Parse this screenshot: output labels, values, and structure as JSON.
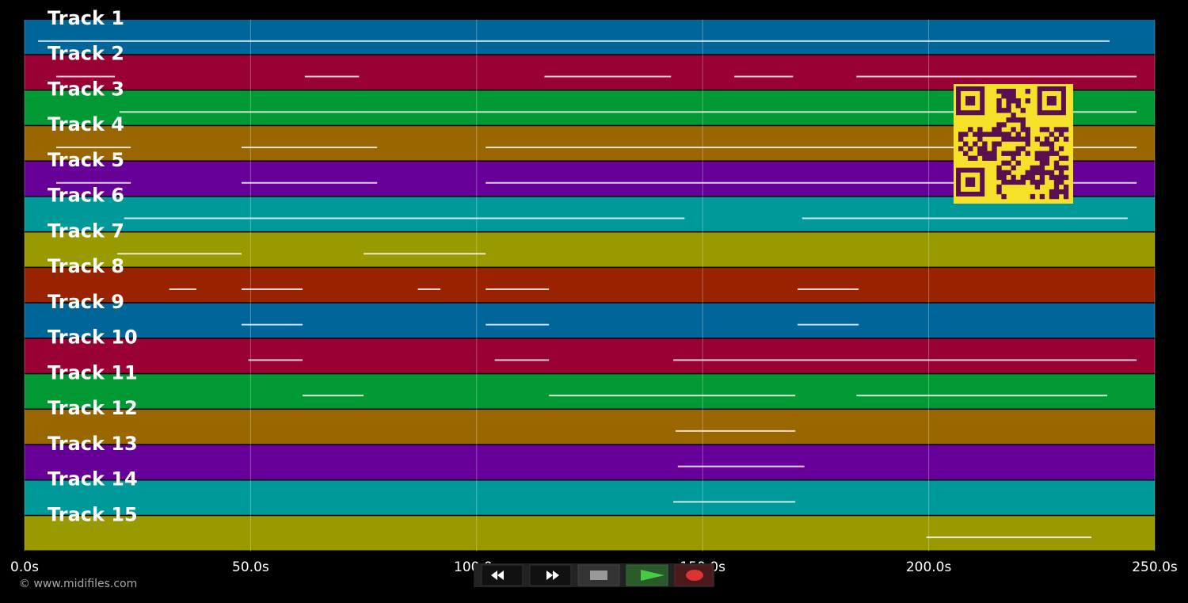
{
  "timeline": {
    "xlim": [
      0,
      250
    ],
    "xticks": [
      {
        "value": 0,
        "label": "0.0s"
      },
      {
        "value": 50,
        "label": "50.0s"
      },
      {
        "value": 100,
        "label": "100.0s"
      },
      {
        "value": 150,
        "label": "150.0s"
      },
      {
        "value": 200,
        "label": "200.0s"
      },
      {
        "value": 250,
        "label": "250.0s"
      }
    ],
    "tracks": [
      {
        "label": "Track 1",
        "color": "#006699",
        "notes": [
          [
            3,
            240
          ]
        ]
      },
      {
        "label": "Track 2",
        "color": "#990033",
        "notes": [
          [
            7,
            20
          ],
          [
            62,
            74
          ],
          [
            115,
            143
          ],
          [
            157,
            170
          ],
          [
            184,
            246
          ]
        ]
      },
      {
        "label": "Track 3",
        "color": "#009933",
        "notes": [
          [
            21,
            246
          ]
        ]
      },
      {
        "label": "Track 4",
        "color": "#996600",
        "notes": [
          [
            7,
            23.5
          ],
          [
            48,
            78
          ],
          [
            102,
            246
          ]
        ]
      },
      {
        "label": "Track 5",
        "color": "#660099",
        "notes": [
          [
            7,
            23.5
          ],
          [
            48,
            78
          ],
          [
            102,
            246
          ]
        ]
      },
      {
        "label": "Track 6",
        "color": "#009999",
        "notes": [
          [
            22,
            146
          ],
          [
            172,
            244
          ]
        ]
      },
      {
        "label": "Track 7",
        "color": "#999900",
        "notes": [
          [
            20.5,
            48
          ],
          [
            75,
            102
          ]
        ]
      },
      {
        "label": "Track 8",
        "color": "#992200",
        "notes": [
          [
            32,
            38
          ],
          [
            48,
            61.5
          ],
          [
            87,
            92
          ],
          [
            102,
            116
          ],
          [
            171,
            184.5
          ]
        ]
      },
      {
        "label": "Track 9",
        "color": "#006699",
        "notes": [
          [
            48,
            61.5
          ],
          [
            102,
            116
          ],
          [
            171,
            184.5
          ]
        ]
      },
      {
        "label": "Track 10",
        "color": "#990033",
        "notes": [
          [
            49.5,
            61.5
          ],
          [
            104,
            116
          ],
          [
            143.5,
            246
          ]
        ]
      },
      {
        "label": "Track 11",
        "color": "#009933",
        "notes": [
          [
            61.5,
            75
          ],
          [
            116,
            170.5
          ],
          [
            184,
            239.5
          ]
        ]
      },
      {
        "label": "Track 12",
        "color": "#996600",
        "notes": [
          [
            144,
            170.5
          ]
        ]
      },
      {
        "label": "Track 13",
        "color": "#660099",
        "notes": [
          [
            144.5,
            172.5
          ]
        ]
      },
      {
        "label": "Track 14",
        "color": "#009999",
        "notes": [
          [
            143.5,
            170.5
          ]
        ]
      },
      {
        "label": "Track 15",
        "color": "#999900",
        "notes": [
          [
            199.5,
            236
          ]
        ]
      }
    ]
  },
  "footer": {
    "credit": "© www.midifiles.com"
  }
}
